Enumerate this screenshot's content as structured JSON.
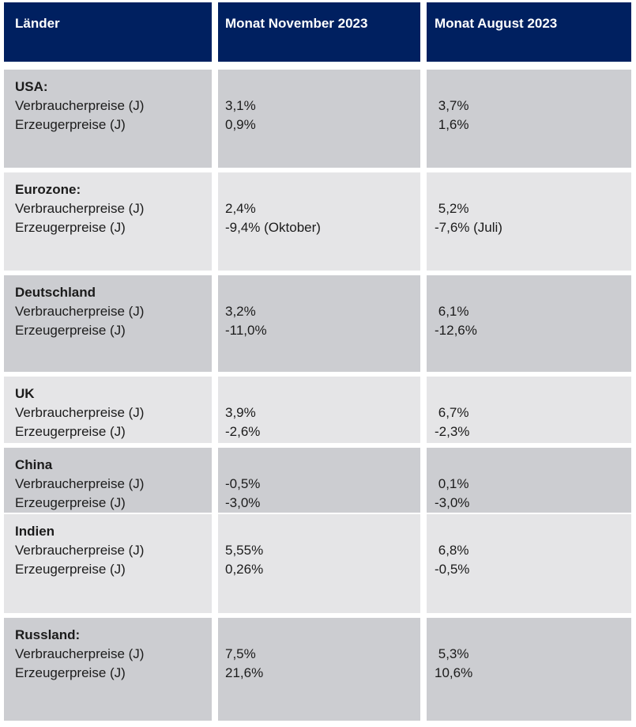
{
  "header": {
    "country_col": "Länder",
    "november_col": "Monat November 2023",
    "august_col": "Monat August 2023"
  },
  "colors": {
    "header_bg": "#002060",
    "header_text": "#ffffff",
    "row_dark": "#cccdd1",
    "row_light": "#e5e5e7",
    "text": "#1b1b1b"
  },
  "rows": [
    {
      "country": "USA:",
      "metric1": "Verbraucherpreise (J)",
      "metric2": "Erzeugerpreise (J)",
      "nov1": "3,1%",
      "nov2": "0,9%",
      "aug1": " 3,7%",
      "aug2": " 1,6%"
    },
    {
      "country": "Eurozone:",
      "metric1": "Verbraucherpreise (J)",
      "metric2": "Erzeugerpreise (J)",
      "nov1": "2,4%",
      "nov2": "-9,4% (Oktober)",
      "aug1": " 5,2%",
      "aug2": "-7,6% (Juli)"
    },
    {
      "country": "Deutschland",
      "metric1": "Verbraucherpreise (J)",
      "metric2": "Erzeugerpreise (J)",
      "nov1": "3,2%",
      "nov2": "-11,0%",
      "aug1": " 6,1%",
      "aug2": "-12,6%"
    },
    {
      "country": "UK",
      "metric1": "Verbraucherpreise (J)",
      "metric2": "Erzeugerpreise (J)",
      "nov1": "3,9%",
      "nov2": "-2,6%",
      "aug1": " 6,7%",
      "aug2": "-2,3%"
    },
    {
      "country": "China",
      "metric1": "Verbraucherpreise (J)",
      "metric2": "Erzeugerpreise (J)",
      "nov1": "-0,5%",
      "nov2": "-3,0%",
      "aug1": " 0,1%",
      "aug2": "-3,0%"
    },
    {
      "country": "Indien",
      "metric1": "Verbraucherpreise (J)",
      "metric2": "Erzeugerpreise (J)",
      "nov1": "5,55%",
      "nov2": "0,26%",
      "aug1": " 6,8%",
      "aug2": "-0,5%"
    },
    {
      "country": "Russland:",
      "metric1": "Verbraucherpreise (J)",
      "metric2": "Erzeugerpreise (J)",
      "nov1": "7,5%",
      "nov2": "21,6%",
      "aug1": " 5,3%",
      "aug2": "10,6%"
    }
  ]
}
